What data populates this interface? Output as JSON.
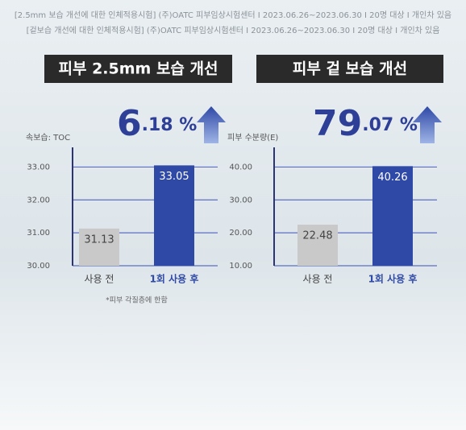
{
  "header": {
    "lines": [
      "[2.5mm 보습 개선에 대한 인체적용시험] (주)OATC 피부임상시험센터 I 2023.06.26~2023.06.30 I 20명 대상 I 개인차 있음",
      "[겉보습 개선에 대한 인체적용시험] (주)OATC 피부임상시험센터 I 2023.06.26~2023.06.30 I 20명 대상 I 개인차 있음"
    ]
  },
  "chart_data": [
    {
      "type": "bar",
      "title": "피부 2.5mm 보습 개선",
      "increase_label": "6.18 %",
      "ylabel": "속보습: TOC",
      "categories": [
        "사용 전",
        "1회 사용 후"
      ],
      "values": [
        31.13,
        33.05
      ],
      "colors": [
        "#c9c9c9",
        "#2f49a6"
      ],
      "ylim": [
        30,
        33.5
      ],
      "yticks": [
        {
          "value": 30,
          "label": "30.00"
        },
        {
          "value": 31,
          "label": "31.00"
        },
        {
          "value": 32,
          "label": "32.00"
        },
        {
          "value": 33,
          "label": "33.00"
        }
      ],
      "grid": true,
      "note": "*피부 각질층에 한함"
    },
    {
      "type": "bar",
      "title": "피부 겉 보습 개선",
      "increase_label": "79.07 %",
      "ylabel": "피부 수분량(E)",
      "categories": [
        "사용 전",
        "1회 사용 후"
      ],
      "values": [
        22.48,
        40.26
      ],
      "colors": [
        "#c9c9c9",
        "#2f49a6"
      ],
      "ylim": [
        10,
        45
      ],
      "yticks": [
        {
          "value": 10,
          "label": "10.00"
        },
        {
          "value": 20,
          "label": "20.00"
        },
        {
          "value": 30,
          "label": "30.00"
        },
        {
          "value": 40,
          "label": "40.00"
        }
      ],
      "grid": true
    }
  ]
}
